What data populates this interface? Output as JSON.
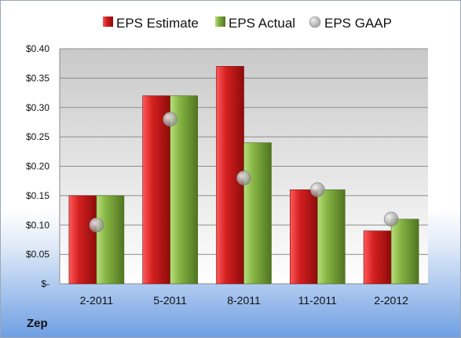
{
  "company": "Zep",
  "chart_data": {
    "type": "bar",
    "categories": [
      "2-2011",
      "5-2011",
      "8-2011",
      "11-2011",
      "2-2012"
    ],
    "series": [
      {
        "name": "EPS Estimate",
        "type": "bar",
        "color": "#cc1f1f",
        "values": [
          0.15,
          0.32,
          0.37,
          0.16,
          0.09
        ]
      },
      {
        "name": "EPS Actual",
        "type": "bar",
        "color": "#7aa63a",
        "values": [
          0.15,
          0.32,
          0.24,
          0.16,
          0.11
        ]
      },
      {
        "name": "EPS GAAP",
        "type": "scatter",
        "color": "#b9b9b9",
        "values": [
          0.1,
          0.28,
          0.18,
          0.16,
          0.11
        ]
      }
    ],
    "y_ticks": [
      "$-",
      "$0.05",
      "$0.10",
      "$0.15",
      "$0.20",
      "$0.25",
      "$0.30",
      "$0.35",
      "$0.40"
    ],
    "ylim": [
      0,
      0.4
    ],
    "grid": true,
    "legend_position": "top"
  }
}
